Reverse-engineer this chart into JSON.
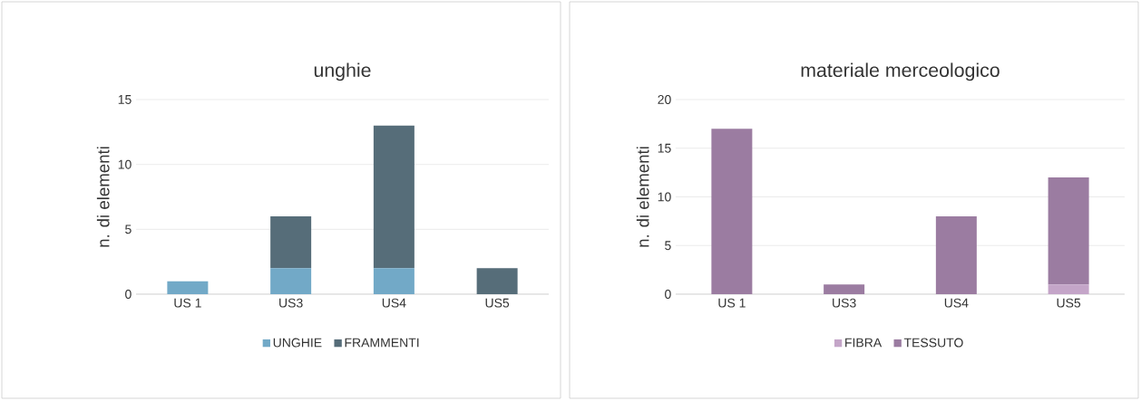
{
  "chart_data": [
    {
      "type": "bar",
      "title": "unghie",
      "ylabel": "n. di elementi",
      "categories": [
        "US 1",
        "US3",
        "US4",
        "US5"
      ],
      "stacked": true,
      "ylim": [
        0,
        15
      ],
      "yticks": [
        0,
        5,
        10,
        15
      ],
      "grid": "y",
      "legend": "bottom",
      "series": [
        {
          "name": "UNGHIE",
          "color": "#72a9c7",
          "values": [
            1,
            2,
            2,
            0
          ]
        },
        {
          "name": "FRAMMENTI",
          "color": "#566d79",
          "values": [
            0,
            4,
            11,
            2
          ]
        }
      ]
    },
    {
      "type": "bar",
      "title": "materiale merceologico",
      "ylabel": "n. di elementi",
      "categories": [
        "US 1",
        "US3",
        "US4",
        "US5"
      ],
      "stacked": true,
      "ylim": [
        0,
        20
      ],
      "yticks": [
        0,
        5,
        10,
        15,
        20
      ],
      "grid": "y",
      "legend": "bottom",
      "series": [
        {
          "name": "FIBRA",
          "color": "#c4a5c8",
          "values": [
            0,
            0,
            0,
            1
          ]
        },
        {
          "name": "TESSUTO",
          "color": "#9b7ca1",
          "values": [
            17,
            1,
            8,
            11
          ]
        }
      ]
    }
  ]
}
